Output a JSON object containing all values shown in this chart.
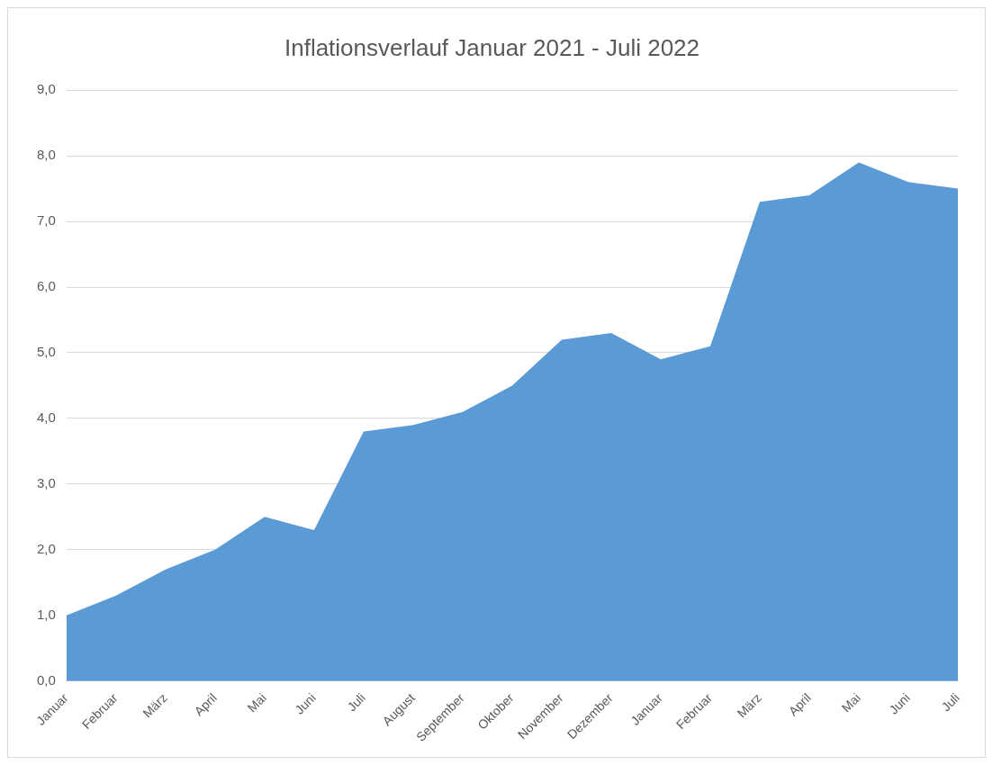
{
  "chart_data": {
    "type": "area",
    "title": "Inflationsverlauf Januar 2021 - Juli 2022",
    "categories": [
      "Januar",
      "Februar",
      "März",
      "April",
      "Mai",
      "Juni",
      "Juli",
      "August",
      "September",
      "Oktober",
      "November",
      "Dezember",
      "Januar",
      "Februar",
      "März",
      "April",
      "Mai",
      "Juni",
      "Juli"
    ],
    "series": [
      {
        "color": "#5b9bd5",
        "values": [
          1.0,
          1.3,
          1.7,
          2.0,
          2.5,
          2.3,
          3.8,
          3.9,
          4.1,
          4.5,
          5.2,
          5.3,
          4.9,
          5.1,
          7.3,
          7.4,
          7.9,
          7.6,
          7.5
        ]
      }
    ],
    "ylim": [
      0,
      9
    ],
    "yticks": [
      {
        "value": 0,
        "label": "0,0"
      },
      {
        "value": 1,
        "label": "1,0"
      },
      {
        "value": 2,
        "label": "2,0"
      },
      {
        "value": 3,
        "label": "3,0"
      },
      {
        "value": 4,
        "label": "4,0"
      },
      {
        "value": 5,
        "label": "5,0"
      },
      {
        "value": 6,
        "label": "6,0"
      },
      {
        "value": 7,
        "label": "7,0"
      },
      {
        "value": 8,
        "label": "8,0"
      },
      {
        "value": 9,
        "label": "9,0"
      }
    ],
    "grid": "y",
    "legend": false
  }
}
